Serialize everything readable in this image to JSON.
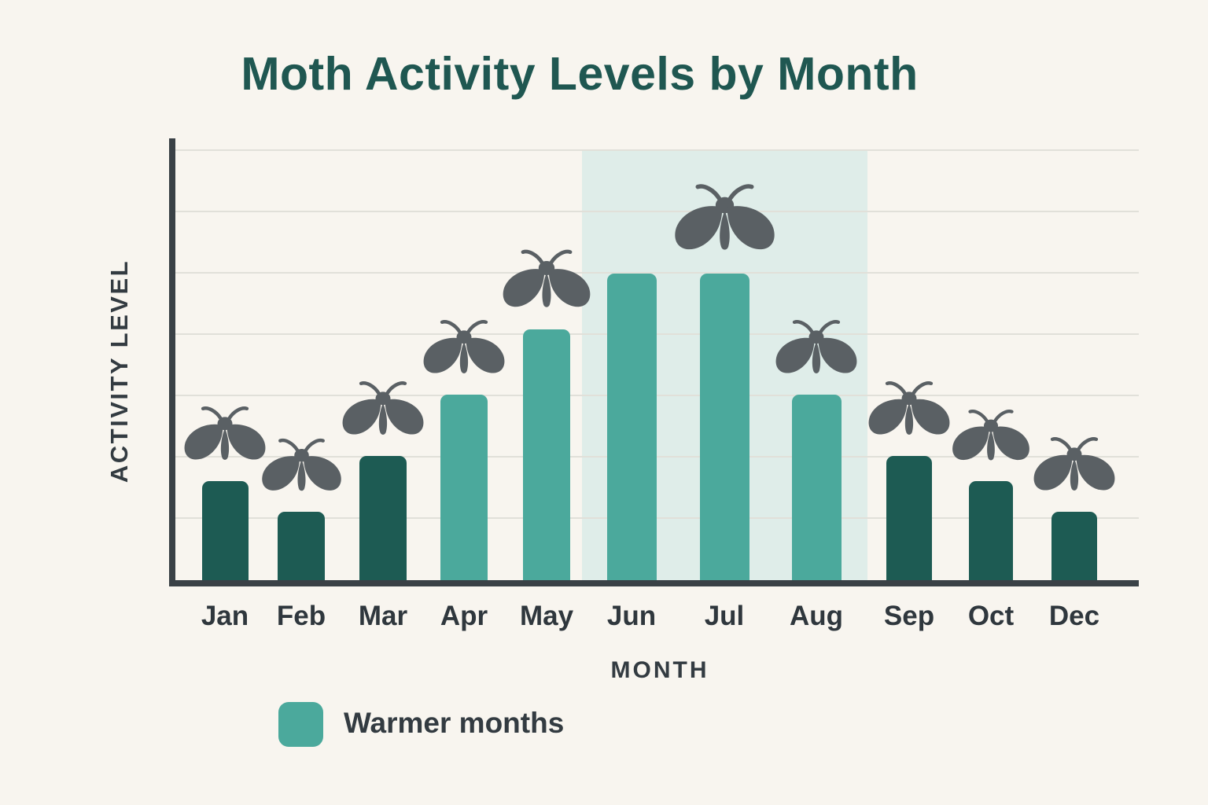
{
  "title": "Moth Activity Levels by Month",
  "axes": {
    "x_label": "MONTH",
    "y_label": "ACTIVITY LEVEL"
  },
  "legend": {
    "label": "Warmer months",
    "swatch_color": "#4BA99C",
    "swatch_shape": "rounded-square"
  },
  "colors": {
    "background": "#F8F5EF",
    "title": "#1F5751",
    "bar_cold": "#1D5B53",
    "bar_warm": "#4BA99C",
    "highlight_band": "#DFEDE9",
    "gridline": "#E1E0D9",
    "axis": "#3A4146",
    "label_text": "#333B41",
    "tick_text": "#2F373D",
    "moth": "#5A6064"
  },
  "chart_data": {
    "type": "bar",
    "title": "Moth Activity Levels by Month",
    "xlabel": "MONTH",
    "ylabel": "ACTIVITY LEVEL",
    "categories": [
      "Jan",
      "Feb",
      "Mar",
      "Apr",
      "May",
      "Jun",
      "Jul",
      "Aug",
      "Sep",
      "Oct",
      "Dec"
    ],
    "values": [
      33,
      23,
      41,
      61,
      82,
      100,
      100,
      61,
      41,
      33,
      23
    ],
    "value_scale_note": "y-axis has no numeric ticks; values are relative with the Jun/Jul peak = 100",
    "warmer_months": [
      "Apr",
      "May",
      "Jun",
      "Jul",
      "Aug"
    ],
    "highlight_band_months": [
      "Jun",
      "Jul",
      "Aug"
    ],
    "moth_icon_months": [
      "Jan",
      "Feb",
      "Mar",
      "Apr",
      "May",
      "Jul",
      "Aug",
      "Sep",
      "Oct",
      "Dec"
    ],
    "moth_icon_scales": {
      "Jan": 1,
      "Feb": 0.97,
      "Mar": 1,
      "Apr": 1,
      "May": 1.07,
      "Jul": 1.22,
      "Aug": 1,
      "Sep": 1,
      "Oct": 0.95,
      "Dec": 1
    },
    "ylim": [
      0,
      143
    ],
    "grid": "horizontal-only",
    "gridline_count": 7,
    "legend_entries": [
      {
        "label": "Warmer months",
        "color": "#4BA99C"
      }
    ],
    "legend_position": "bottom-left"
  }
}
